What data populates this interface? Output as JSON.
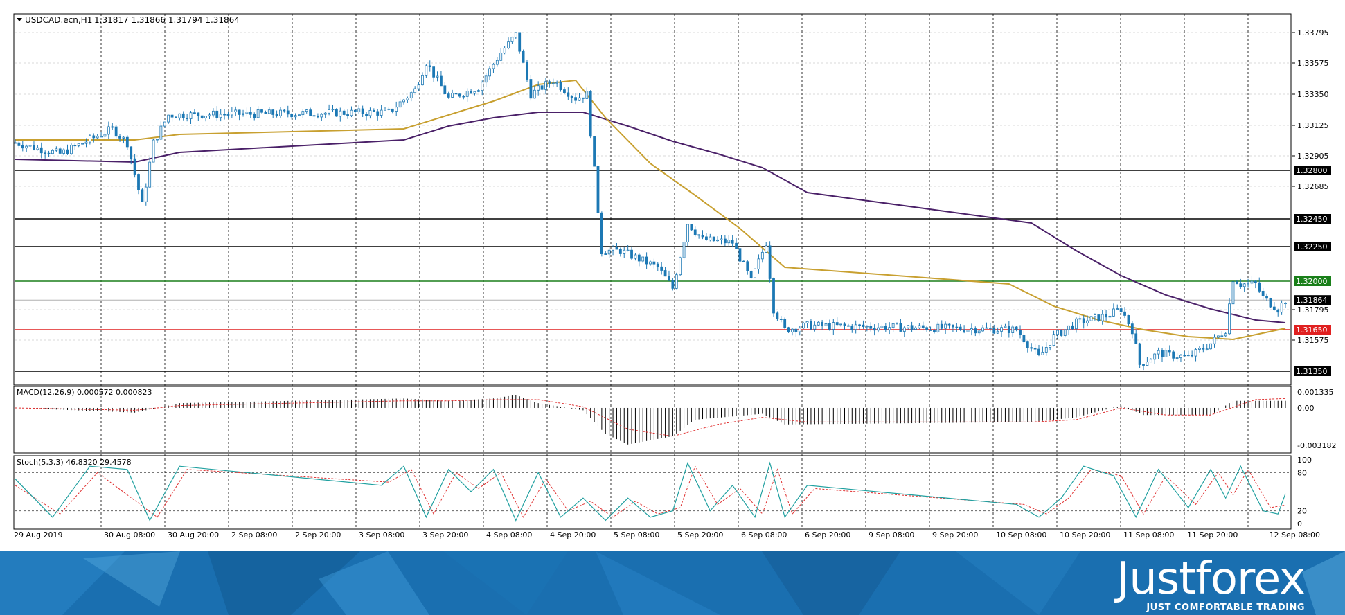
{
  "main_header": {
    "symbol_text": "USDCAD.ecn,H1",
    "ohlc_text": "1.31817 1.31866 1.31794 1.31864"
  },
  "macd": {
    "title": "MACD(12,26,9) 0.000572 0.000823",
    "ticks": [
      "0.001335",
      "0.00",
      "-0.003182"
    ]
  },
  "stoch": {
    "title": "Stoch(5,3,3) 46.8320 29.4578",
    "ticks": [
      "100",
      "80",
      "20",
      "0"
    ]
  },
  "time_labels": [
    "29 Aug 2019",
    "30 Aug 08:00",
    "30 Aug 20:00",
    "2 Sep 08:00",
    "2 Sep 20:00",
    "3 Sep 08:00",
    "3 Sep 20:00",
    "4 Sep 08:00",
    "4 Sep 20:00",
    "5 Sep 08:00",
    "5 Sep 20:00",
    "6 Sep 08:00",
    "6 Sep 20:00",
    "9 Sep 08:00",
    "9 Sep 20:00",
    "10 Sep 08:00",
    "10 Sep 20:00",
    "11 Sep 08:00",
    "11 Sep 20:00",
    "12 Sep 08:00"
  ],
  "price_ticks": [
    "1.33795",
    "1.33575",
    "1.33350",
    "1.33125",
    "1.32905",
    "1.32685",
    "1.31795",
    "1.31575"
  ],
  "levels": [
    {
      "label": "1.32800",
      "value": 1.328,
      "color": "#000000"
    },
    {
      "label": "1.32450",
      "value": 1.3245,
      "color": "#000000"
    },
    {
      "label": "1.32250",
      "value": 1.3225,
      "color": "#000000"
    },
    {
      "label": "1.32000",
      "value": 1.32,
      "color": "#1a7f1a"
    },
    {
      "label": "1.31650",
      "value": 1.3165,
      "color": "#e02020"
    },
    {
      "label": "1.31350",
      "value": 1.3135,
      "color": "#000000"
    }
  ],
  "current_price": {
    "label": "1.31864",
    "value": 1.31864
  },
  "colors": {
    "bull": "#ffffff",
    "bear": "#1c78b4",
    "ma_fast": "#c8a030",
    "ma_slow": "#4a2068",
    "macd_signal": "#e03030",
    "stoch_main": "#20a0a0",
    "stoch_signal": "#e03030",
    "footer_blue": "#1a6fb0"
  },
  "brand": {
    "name": "Justforex",
    "tagline": "JUST COMFORTABLE TRADING"
  },
  "chart_data": {
    "type": "candlestick",
    "symbol": "USDCAD.ecn",
    "timeframe": "H1",
    "ylim": [
      1.3126,
      1.3392
    ],
    "close_path_hourly": [
      [
        "29 Aug 2019 00:00",
        1.33
      ],
      [
        "29 Aug 2019 12:00",
        1.3292
      ],
      [
        "30 Aug 2019 02:00",
        1.331
      ],
      [
        "30 Aug 2019 06:00",
        1.33
      ],
      [
        "30 Aug 2019 10:00",
        1.3255
      ],
      [
        "30 Aug 2019 13:00",
        1.33
      ],
      [
        "30 Aug 2019 17:00",
        1.332
      ],
      [
        "2 Sep 2019 04:00",
        1.3322
      ],
      [
        "2 Sep 2019 11:00",
        1.3338
      ],
      [
        "2 Sep 2019 14:00",
        1.3358
      ],
      [
        "2 Sep 2019 20:00",
        1.3332
      ],
      [
        "3 Sep 2019 04:00",
        1.334
      ],
      [
        "3 Sep 2019 10:00",
        1.3365
      ],
      [
        "3 Sep 2019 14:00",
        1.3378
      ],
      [
        "3 Sep 2019 18:00",
        1.3335
      ],
      [
        "4 Sep 2019 00:00",
        1.3345
      ],
      [
        "4 Sep 2019 06:00",
        1.3332
      ],
      [
        "4 Sep 2019 09:00",
        1.3335
      ],
      [
        "4 Sep 2019 11:00",
        1.328
      ],
      [
        "4 Sep 2019 13:00",
        1.3222
      ],
      [
        "4 Sep 2019 18:00",
        1.3222
      ],
      [
        "5 Sep 2019 04:00",
        1.321
      ],
      [
        "5 Sep 2019 08:00",
        1.3195
      ],
      [
        "5 Sep 2019 12:00",
        1.3242
      ],
      [
        "5 Sep 2019 16:00",
        1.323
      ],
      [
        "6 Sep 2019 00:00",
        1.3228
      ],
      [
        "6 Sep 2019 05:00",
        1.32
      ],
      [
        "6 Sep 2019 09:00",
        1.3228
      ],
      [
        "6 Sep 2019 11:00",
        1.318
      ],
      [
        "6 Sep 2019 14:00",
        1.3165
      ],
      [
        "6 Sep 2019 20:00",
        1.3168
      ],
      [
        "9 Sep 2019 04:00",
        1.3165
      ],
      [
        "9 Sep 2019 10:00",
        1.3145
      ],
      [
        "9 Sep 2019 14:00",
        1.316
      ],
      [
        "9 Sep 2019 20:00",
        1.317
      ],
      [
        "10 Sep 2019 04:00",
        1.3175
      ],
      [
        "10 Sep 2019 08:00",
        1.318
      ],
      [
        "10 Sep 2019 11:00",
        1.3165
      ],
      [
        "10 Sep 2019 13:00",
        1.314
      ],
      [
        "10 Sep 2019 18:00",
        1.3148
      ],
      [
        "11 Sep 2019 02:00",
        1.3145
      ],
      [
        "11 Sep 2019 08:00",
        1.3155
      ],
      [
        "11 Sep 2019 12:00",
        1.3165
      ],
      [
        "11 Sep 2019 14:00",
        1.3202
      ],
      [
        "11 Sep 2019 16:00",
        1.3198
      ],
      [
        "11 Sep 2019 20:00",
        1.3198
      ],
      [
        "11 Sep 2019 22:00",
        1.3188
      ],
      [
        "12 Sep 2019 02:00",
        1.318
      ],
      [
        "12 Sep 2019 04:00",
        1.31864
      ]
    ],
    "ma_fast_path": [
      [
        "29 Aug 2019 00:00",
        1.3302
      ],
      [
        "30 Aug 2019 08:00",
        1.3302
      ],
      [
        "30 Aug 2019 20:00",
        1.3306
      ],
      [
        "2 Sep 2019 08:00",
        1.331
      ],
      [
        "2 Sep 2019 20:00",
        1.332
      ],
      [
        "3 Sep 2019 08:00",
        1.333
      ],
      [
        "3 Sep 2019 20:00",
        1.3342
      ],
      [
        "4 Sep 2019 06:00",
        1.3345
      ],
      [
        "4 Sep 2019 14:00",
        1.3318
      ],
      [
        "5 Sep 2019 02:00",
        1.3285
      ],
      [
        "5 Sep 2019 14:00",
        1.3262
      ],
      [
        "6 Sep 2019 02:00",
        1.3238
      ],
      [
        "6 Sep 2019 14:00",
        1.321
      ],
      [
        "9 Sep 2019 02:00",
        1.3198
      ],
      [
        "9 Sep 2019 14:00",
        1.3182
      ],
      [
        "10 Sep 2019 02:00",
        1.3172
      ],
      [
        "10 Sep 2019 14:00",
        1.3165
      ],
      [
        "11 Sep 2019 02:00",
        1.316
      ],
      [
        "11 Sep 2019 14:00",
        1.3158
      ],
      [
        "12 Sep 2019 04:00",
        1.3166
      ]
    ],
    "ma_slow_path": [
      [
        "29 Aug 2019 00:00",
        1.3288
      ],
      [
        "30 Aug 2019 08:00",
        1.3286
      ],
      [
        "30 Aug 2019 20:00",
        1.3293
      ],
      [
        "2 Sep 2019 08:00",
        1.3302
      ],
      [
        "2 Sep 2019 20:00",
        1.3312
      ],
      [
        "3 Sep 2019 08:00",
        1.3318
      ],
      [
        "3 Sep 2019 20:00",
        1.3322
      ],
      [
        "4 Sep 2019 08:00",
        1.3322
      ],
      [
        "4 Sep 2019 20:00",
        1.3312
      ],
      [
        "5 Sep 2019 08:00",
        1.3301
      ],
      [
        "5 Sep 2019 20:00",
        1.3292
      ],
      [
        "6 Sep 2019 08:00",
        1.3282
      ],
      [
        "6 Sep 2019 20:00",
        1.3264
      ],
      [
        "9 Sep 2019 08:00",
        1.3242
      ],
      [
        "9 Sep 2019 20:00",
        1.3222
      ],
      [
        "10 Sep 2019 08:00",
        1.3204
      ],
      [
        "10 Sep 2019 20:00",
        1.319
      ],
      [
        "11 Sep 2019 08:00",
        1.318
      ],
      [
        "11 Sep 2019 20:00",
        1.3172
      ],
      [
        "12 Sep 2019 04:00",
        1.317
      ]
    ],
    "macd_hist_path": [
      [
        "29 Aug 2019 00:00",
        0.0
      ],
      [
        "30 Aug 2019 08:00",
        -0.0004
      ],
      [
        "30 Aug 2019 20:00",
        0.0004
      ],
      [
        "2 Sep 2019 08:00",
        0.0008
      ],
      [
        "2 Sep 2019 20:00",
        0.0006
      ],
      [
        "3 Sep 2019 08:00",
        0.0008
      ],
      [
        "3 Sep 2019 14:00",
        0.0011
      ],
      [
        "3 Sep 2019 20:00",
        0.0004
      ],
      [
        "4 Sep 2019 08:00",
        -0.0002
      ],
      [
        "4 Sep 2019 14:00",
        -0.0022
      ],
      [
        "4 Sep 2019 20:00",
        -0.0031
      ],
      [
        "5 Sep 2019 08:00",
        -0.0024
      ],
      [
        "5 Sep 2019 14:00",
        -0.001
      ],
      [
        "6 Sep 2019 08:00",
        -0.0005
      ],
      [
        "6 Sep 2019 14:00",
        -0.0014
      ],
      [
        "9 Sep 2019 08:00",
        -0.0012
      ],
      [
        "9 Sep 2019 20:00",
        -0.0008
      ],
      [
        "10 Sep 2019 08:00",
        0.0002
      ],
      [
        "10 Sep 2019 14:00",
        -0.0006
      ],
      [
        "11 Sep 2019 08:00",
        -0.0006
      ],
      [
        "11 Sep 2019 14:00",
        0.0006
      ],
      [
        "12 Sep 2019 04:00",
        0.0006
      ]
    ],
    "macd_signal_path": [
      [
        "29 Aug 2019 00:00",
        0.0
      ],
      [
        "30 Aug 2019 08:00",
        -0.0002
      ],
      [
        "30 Aug 2019 20:00",
        0.0002
      ],
      [
        "2 Sep 2019 08:00",
        0.0006
      ],
      [
        "2 Sep 2019 20:00",
        0.0006
      ],
      [
        "3 Sep 2019 08:00",
        0.0007
      ],
      [
        "3 Sep 2019 20:00",
        0.0007
      ],
      [
        "4 Sep 2019 08:00",
        0.0001
      ],
      [
        "4 Sep 2019 20:00",
        -0.0018
      ],
      [
        "5 Sep 2019 08:00",
        -0.0024
      ],
      [
        "5 Sep 2019 20:00",
        -0.0014
      ],
      [
        "6 Sep 2019 08:00",
        -0.0008
      ],
      [
        "6 Sep 2019 20:00",
        -0.0012
      ],
      [
        "9 Sep 2019 08:00",
        -0.0012
      ],
      [
        "9 Sep 2019 20:00",
        -0.001
      ],
      [
        "10 Sep 2019 08:00",
        0.0
      ],
      [
        "10 Sep 2019 20:00",
        -0.0006
      ],
      [
        "11 Sep 2019 08:00",
        -0.0006
      ],
      [
        "11 Sep 2019 20:00",
        0.0007
      ],
      [
        "12 Sep 2019 04:00",
        0.0008
      ]
    ],
    "stoch_main_path": [
      [
        "29 Aug 2019 00:00",
        70
      ],
      [
        "29 Aug 2019 10:00",
        10
      ],
      [
        "29 Aug 2019 20:00",
        90
      ],
      [
        "30 Aug 2019 06:00",
        85
      ],
      [
        "30 Aug 2019 12:00",
        5
      ],
      [
        "30 Aug 2019 20:00",
        90
      ],
      [
        "2 Sep 2019 02:00",
        60
      ],
      [
        "2 Sep 2019 08:00",
        90
      ],
      [
        "2 Sep 2019 14:00",
        10
      ],
      [
        "2 Sep 2019 20:00",
        85
      ],
      [
        "3 Sep 2019 02:00",
        50
      ],
      [
        "3 Sep 2019 08:00",
        85
      ],
      [
        "3 Sep 2019 14:00",
        5
      ],
      [
        "3 Sep 2019 20:00",
        80
      ],
      [
        "4 Sep 2019 02:00",
        10
      ],
      [
        "4 Sep 2019 08:00",
        40
      ],
      [
        "4 Sep 2019 14:00",
        5
      ],
      [
        "4 Sep 2019 20:00",
        40
      ],
      [
        "5 Sep 2019 02:00",
        10
      ],
      [
        "5 Sep 2019 08:00",
        20
      ],
      [
        "5 Sep 2019 12:00",
        95
      ],
      [
        "5 Sep 2019 18:00",
        20
      ],
      [
        "6 Sep 2019 00:00",
        60
      ],
      [
        "6 Sep 2019 06:00",
        10
      ],
      [
        "6 Sep 2019 10:00",
        95
      ],
      [
        "6 Sep 2019 14:00",
        10
      ],
      [
        "6 Sep 2019 20:00",
        60
      ],
      [
        "9 Sep 2019 04:00",
        30
      ],
      [
        "9 Sep 2019 10:00",
        10
      ],
      [
        "9 Sep 2019 16:00",
        40
      ],
      [
        "9 Sep 2019 22:00",
        90
      ],
      [
        "10 Sep 2019 06:00",
        75
      ],
      [
        "10 Sep 2019 12:00",
        10
      ],
      [
        "10 Sep 2019 18:00",
        85
      ],
      [
        "11 Sep 2019 02:00",
        25
      ],
      [
        "11 Sep 2019 08:00",
        85
      ],
      [
        "11 Sep 2019 12:00",
        40
      ],
      [
        "11 Sep 2019 16:00",
        90
      ],
      [
        "11 Sep 2019 22:00",
        20
      ],
      [
        "12 Sep 2019 02:00",
        15
      ],
      [
        "12 Sep 2019 04:00",
        47
      ]
    ],
    "stoch_signal_path": [
      [
        "29 Aug 2019 00:00",
        60
      ],
      [
        "29 Aug 2019 12:00",
        15
      ],
      [
        "29 Aug 2019 22:00",
        80
      ],
      [
        "30 Aug 2019 14:00",
        10
      ],
      [
        "30 Aug 2019 22:00",
        85
      ],
      [
        "2 Sep 2019 04:00",
        65
      ],
      [
        "2 Sep 2019 10:00",
        85
      ],
      [
        "2 Sep 2019 16:00",
        15
      ],
      [
        "2 Sep 2019 22:00",
        80
      ],
      [
        "3 Sep 2019 04:00",
        55
      ],
      [
        "3 Sep 2019 10:00",
        80
      ],
      [
        "3 Sep 2019 16:00",
        10
      ],
      [
        "3 Sep 2019 22:00",
        70
      ],
      [
        "4 Sep 2019 04:00",
        20
      ],
      [
        "4 Sep 2019 10:00",
        35
      ],
      [
        "4 Sep 2019 16:00",
        10
      ],
      [
        "4 Sep 2019 22:00",
        35
      ],
      [
        "5 Sep 2019 04:00",
        15
      ],
      [
        "5 Sep 2019 10:00",
        25
      ],
      [
        "5 Sep 2019 14:00",
        90
      ],
      [
        "5 Sep 2019 20:00",
        30
      ],
      [
        "6 Sep 2019 02:00",
        55
      ],
      [
        "6 Sep 2019 08:00",
        15
      ],
      [
        "6 Sep 2019 12:00",
        85
      ],
      [
        "6 Sep 2019 16:00",
        15
      ],
      [
        "6 Sep 2019 22:00",
        55
      ],
      [
        "9 Sep 2019 06:00",
        30
      ],
      [
        "9 Sep 2019 12:00",
        15
      ],
      [
        "9 Sep 2019 18:00",
        40
      ],
      [
        "10 Sep 2019 00:00",
        85
      ],
      [
        "10 Sep 2019 08:00",
        75
      ],
      [
        "10 Sep 2019 14:00",
        15
      ],
      [
        "10 Sep 2019 20:00",
        75
      ],
      [
        "11 Sep 2019 04:00",
        30
      ],
      [
        "11 Sep 2019 10:00",
        80
      ],
      [
        "11 Sep 2019 14:00",
        45
      ],
      [
        "11 Sep 2019 18:00",
        85
      ],
      [
        "12 Sep 2019 00:00",
        25
      ],
      [
        "12 Sep 2019 04:00",
        29
      ]
    ]
  }
}
